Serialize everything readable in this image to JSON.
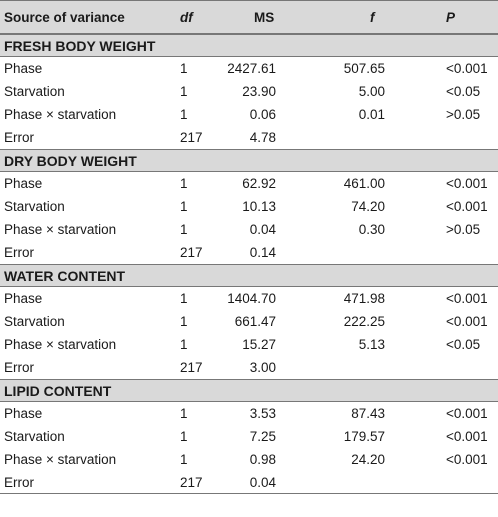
{
  "header": {
    "source": "Source of variance",
    "df": "df",
    "ms": "MS",
    "f": "f",
    "p": "P"
  },
  "sections": [
    {
      "title": "FRESH BODY WEIGHT",
      "rows": [
        {
          "source": "Phase",
          "df": "1",
          "ms": "2427.61",
          "f": "507.65",
          "p": "<0.001"
        },
        {
          "source": "Starvation",
          "df": "1",
          "ms": "23.90",
          "f": "5.00",
          "p": "<0.05"
        },
        {
          "source": "Phase × starvation",
          "df": "1",
          "ms": "0.06",
          "f": "0.01",
          "p": ">0.05"
        },
        {
          "source": "Error",
          "df": "217",
          "ms": "4.78",
          "f": "",
          "p": ""
        }
      ]
    },
    {
      "title": "DRY BODY WEIGHT",
      "rows": [
        {
          "source": "Phase",
          "df": "1",
          "ms": "62.92",
          "f": "461.00",
          "p": "<0.001"
        },
        {
          "source": "Starvation",
          "df": "1",
          "ms": "10.13",
          "f": "74.20",
          "p": "<0.001"
        },
        {
          "source": "Phase × starvation",
          "df": "1",
          "ms": "0.04",
          "f": "0.30",
          "p": ">0.05"
        },
        {
          "source": "Error",
          "df": "217",
          "ms": "0.14",
          "f": "",
          "p": ""
        }
      ]
    },
    {
      "title": "WATER CONTENT",
      "rows": [
        {
          "source": "Phase",
          "df": "1",
          "ms": "1404.70",
          "f": "471.98",
          "p": "<0.001"
        },
        {
          "source": "Starvation",
          "df": "1",
          "ms": "661.47",
          "f": "222.25",
          "p": "<0.001"
        },
        {
          "source": "Phase × starvation",
          "df": "1",
          "ms": "15.27",
          "f": "5.13",
          "p": "<0.05"
        },
        {
          "source": "Error",
          "df": "217",
          "ms": "3.00",
          "f": "",
          "p": ""
        }
      ]
    },
    {
      "title": "LIPID CONTENT",
      "rows": [
        {
          "source": "Phase",
          "df": "1",
          "ms": "3.53",
          "f": "87.43",
          "p": "<0.001"
        },
        {
          "source": "Starvation",
          "df": "1",
          "ms": "7.25",
          "f": "179.57",
          "p": "<0.001"
        },
        {
          "source": "Phase × starvation",
          "df": "1",
          "ms": "0.98",
          "f": "24.20",
          "p": "<0.001"
        },
        {
          "source": "Error",
          "df": "217",
          "ms": "0.04",
          "f": "",
          "p": ""
        }
      ]
    }
  ]
}
